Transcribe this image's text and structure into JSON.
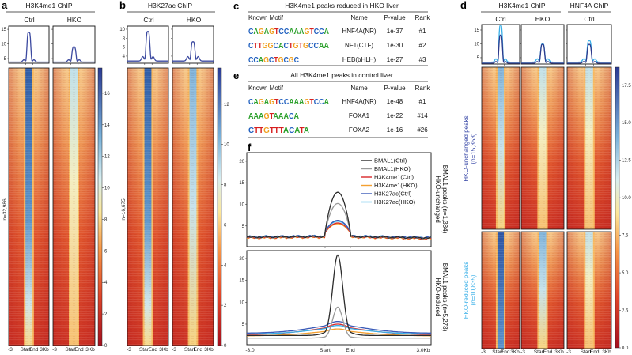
{
  "panel_a": {
    "label": "a",
    "title": "H3K4me1 ChIP",
    "cols": [
      "Ctrl",
      "HKO"
    ],
    "n": "n=32,986",
    "xlabels": [
      "-3",
      "Start",
      "End",
      "3Kb"
    ]
  },
  "panel_b": {
    "label": "b",
    "title": "H3K27ac ChIP",
    "cols": [
      "Ctrl",
      "HKO"
    ],
    "n": "n=16,675",
    "xlabels": [
      "-3",
      "Start",
      "End",
      "3Kb"
    ]
  },
  "panel_c": {
    "label": "c",
    "title": "H3K4me1 peaks reduced in HKO liver",
    "headers": [
      "Known Motif",
      "Name",
      "P-value",
      "Rank"
    ],
    "rows": [
      {
        "motif": "CAGAGTCCAAAGTCCA",
        "name": "HNF4A(NR)",
        "p": "1e-37",
        "rank": "#1"
      },
      {
        "motif": "CTTGGCACTGTGCCAA",
        "name": "NF1(CTF)",
        "p": "1e-30",
        "rank": "#2"
      },
      {
        "motif": "CCAGCTGCGC",
        "name": "HEB(bHLH)",
        "p": "1e-27",
        "rank": "#3"
      }
    ]
  },
  "panel_e": {
    "label": "e",
    "title": "All H3K4me1 peaks in control liver",
    "headers": [
      "Known Motif",
      "Name",
      "P-value",
      "Rank"
    ],
    "rows": [
      {
        "motif": "CAGAGTCCAAAGTCCA",
        "name": "HNF4A(NR)",
        "p": "1e-48",
        "rank": "#1"
      },
      {
        "motif": "AAAGTAAACA",
        "name": "FOXA1",
        "p": "1e-22",
        "rank": "#14"
      },
      {
        "motif": "CTTGTTTACATA",
        "name": "FOXA2",
        "p": "1e-16",
        "rank": "#26"
      }
    ]
  },
  "panel_d": {
    "label": "d",
    "title1": "H3K4me1 ChIP",
    "title2": "HNF4A ChIP",
    "cols": [
      "Ctrl",
      "HKO",
      "Ctrl"
    ],
    "group1": "HKO-unchanged peaks",
    "group1_n": "(n=15,353)",
    "group2": "HKO-reduced peaks",
    "group2_n": "(n=10,835)",
    "xlabels": [
      "-3",
      "Start",
      "End",
      "3Kb"
    ]
  },
  "panel_f": {
    "label": "f",
    "top_label1": "HKO-unchanged",
    "top_label2": "BMAL1 peaks (n=1,384)",
    "bottom_label1": "HKO-reduced",
    "bottom_label2": "BMAL1 peaks (n=5,273)",
    "xlabels": [
      "-3.0",
      "Start",
      "End",
      "3.0Kb"
    ]
  },
  "colors": {
    "bmal_ctrl": "#2b2b2b",
    "bmal_hko": "#9a9a9a",
    "k4_ctrl": "#d8282a",
    "k4_hko": "#f4a030",
    "k27_ctrl": "#3a5bb8",
    "k27_hko": "#3ab0e8",
    "profile": "#3c4aa0",
    "d_unchanged": "#2e3a8c",
    "d_reduced": "#3ab0e8"
  },
  "chart_data": [
    {
      "id": "a",
      "type": "line",
      "title": "H3K4me1 ChIP profiles",
      "categories": [
        "Ctrl",
        "HKO"
      ],
      "peaks": [
        14,
        9
      ],
      "baseline": 3.4,
      "yticks": [
        5,
        10,
        15
      ],
      "ylim": [
        3.4,
        16.1
      ],
      "colorbar": {
        "ticks": [
          0,
          2,
          4,
          6,
          8,
          10,
          12,
          14,
          16
        ],
        "range": [
          0,
          17.6
        ]
      }
    },
    {
      "id": "b",
      "type": "line",
      "title": "H3K27ac ChIP profiles",
      "categories": [
        "Ctrl",
        "HKO"
      ],
      "peaks": [
        9.5,
        7.2
      ],
      "baseline": 3.0,
      "yticks": [
        4,
        6,
        8,
        10
      ],
      "ylim": [
        2.4,
        10.7
      ],
      "colorbar": {
        "ticks": [
          0,
          2,
          4,
          6,
          8,
          10,
          12
        ],
        "range": [
          0,
          13.8
        ]
      }
    },
    {
      "id": "d",
      "type": "line",
      "categories": [
        "H3K4me1 Ctrl",
        "H3K4me1 HKO",
        "HNF4A Ctrl"
      ],
      "series": [
        {
          "name": "HKO-unchanged",
          "peaks": [
            13.2,
            9.8,
            9.8
          ]
        },
        {
          "name": "HKO-reduced",
          "peaks": [
            16.8,
            10.0,
            11.2
          ]
        }
      ],
      "yticks": [
        5,
        10,
        15
      ],
      "ylim": [
        2.7,
        17.0
      ],
      "colorbar": {
        "ticks": [
          "0.0",
          "2.5",
          "5.0",
          "7.5",
          "10.0",
          "12.5",
          "15.0",
          "17.5"
        ],
        "range": [
          0,
          18.7
        ]
      }
    },
    {
      "id": "f",
      "type": "line",
      "x": [
        "-3.0",
        "Start",
        "End",
        "3.0Kb"
      ],
      "legend": [
        "BMAL1(Ctrl)",
        "BMAL1(HKO)",
        "H3K4me1(Ctrl)",
        "H3K4me1(HKO)",
        "H3K27ac(Ctrl)",
        "H3K27ac(HKO)"
      ],
      "top": {
        "yticks": [
          5,
          10,
          15,
          20
        ],
        "ylim": [
          0.2,
          22
        ],
        "baseline": [
          2.4,
          2.4,
          2.3,
          2.2,
          2.5,
          2.5
        ],
        "peaks": [
          12.8,
          10.2,
          5.7,
          5.5,
          6.3,
          6.1
        ]
      },
      "bottom": {
        "yticks": [
          5,
          10,
          15,
          20
        ],
        "ylim": [
          0.3,
          21.8
        ],
        "baseline": [
          2.4,
          1.8,
          2.6,
          2.3,
          2.9,
          2.7
        ],
        "peaks": [
          20.8,
          8.9,
          5.0,
          3.9,
          5.6,
          4.7
        ]
      }
    }
  ]
}
